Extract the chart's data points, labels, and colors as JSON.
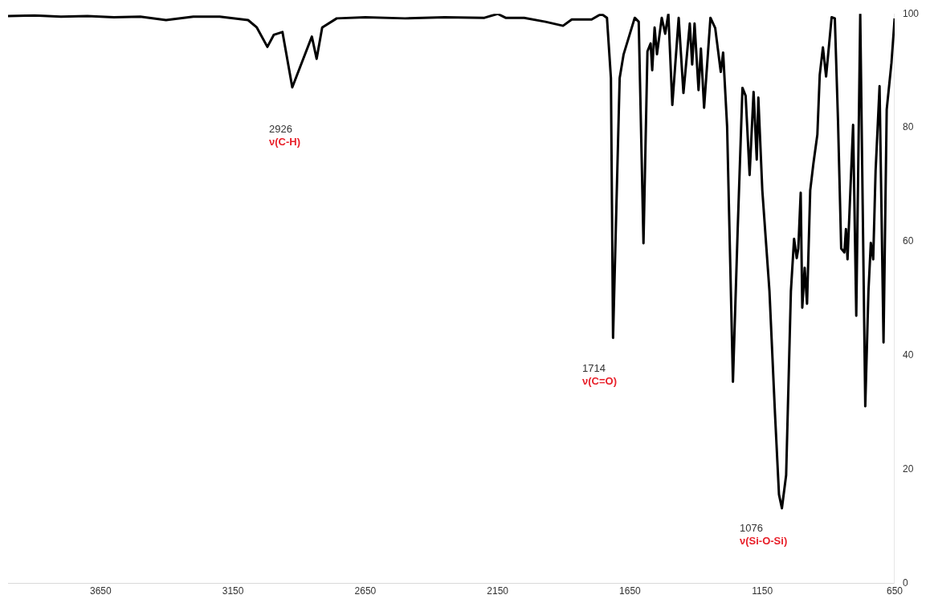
{
  "chart_data": {
    "type": "line",
    "xlim": [
      4000,
      650
    ],
    "xticks": [
      3650,
      3150,
      2650,
      2150,
      1650,
      1150,
      650
    ],
    "ylim": [
      0,
      100
    ],
    "yticks": [
      0,
      20,
      40,
      60,
      80,
      100
    ],
    "grid": false,
    "legend": false,
    "marker": "none",
    "line_style": "solid",
    "x": [
      4000,
      3900,
      3800,
      3700,
      3600,
      3500,
      3403,
      3300,
      3200,
      3093,
      3060,
      3020,
      2996,
      2963,
      2926,
      2852,
      2834,
      2813,
      2758,
      2650,
      2500,
      2350,
      2200,
      2150,
      2120,
      2050,
      1969,
      1903,
      1870,
      1795,
      1758,
      1737,
      1722,
      1714,
      1689,
      1674,
      1632,
      1617,
      1599,
      1584,
      1572,
      1566,
      1557,
      1548,
      1530,
      1517,
      1505,
      1490,
      1466,
      1448,
      1424,
      1415,
      1406,
      1391,
      1382,
      1370,
      1346,
      1328,
      1307,
      1298,
      1283,
      1261,
      1243,
      1225,
      1213,
      1198,
      1183,
      1171,
      1165,
      1150,
      1123,
      1102,
      1087,
      1076,
      1060,
      1042,
      1030,
      1020,
      1014,
      1005,
      999,
      990,
      981,
      969,
      957,
      942,
      933,
      921,
      909,
      888,
      876,
      864,
      852,
      840,
      834,
      828,
      807,
      795,
      780,
      761,
      749,
      740,
      731,
      722,
      707,
      692,
      680,
      662,
      650
    ],
    "series": [
      {
        "color": "#000000",
        "values": [
          99.6,
          99.7,
          99.5,
          99.6,
          99.4,
          99.5,
          98.9,
          99.5,
          99.5,
          98.9,
          97.6,
          94.2,
          96.3,
          96.8,
          87.1,
          96.0,
          92.1,
          97.6,
          99.2,
          99.4,
          99.2,
          99.4,
          99.3,
          100,
          99.3,
          99.3,
          98.6,
          97.9,
          99.0,
          99.0,
          100,
          99.3,
          88.7,
          43.1,
          88.7,
          92.9,
          99.3,
          98.6,
          59.7,
          93.4,
          94.8,
          90.1,
          97.6,
          92.9,
          99.3,
          96.5,
          100,
          84.0,
          99.3,
          86.1,
          98.3,
          91.1,
          98.3,
          86.6,
          93.9,
          83.5,
          99.3,
          97.5,
          89.8,
          93.2,
          80.2,
          35.4,
          62.2,
          87.0,
          85.6,
          71.7,
          86.3,
          74.4,
          85.3,
          69.0,
          51.3,
          29.7,
          15.6,
          13.2,
          19.0,
          51.3,
          60.5,
          57.1,
          58.8,
          68.6,
          48.4,
          55.4,
          49.1,
          69.0,
          73.7,
          78.8,
          89.3,
          94.1,
          89.0,
          99.4,
          99.2,
          81.2,
          58.8,
          58.1,
          62.2,
          56.9,
          80.5,
          47.0,
          100,
          31.1,
          51.3,
          59.8,
          56.9,
          72.4,
          87.3,
          42.3,
          83.2,
          91.4,
          99.2
        ]
      }
    ],
    "annotations": [
      "2926\nν(C-H)",
      "1714\nν(C=O)",
      "1076\nν(Si-O-Si)"
    ]
  }
}
